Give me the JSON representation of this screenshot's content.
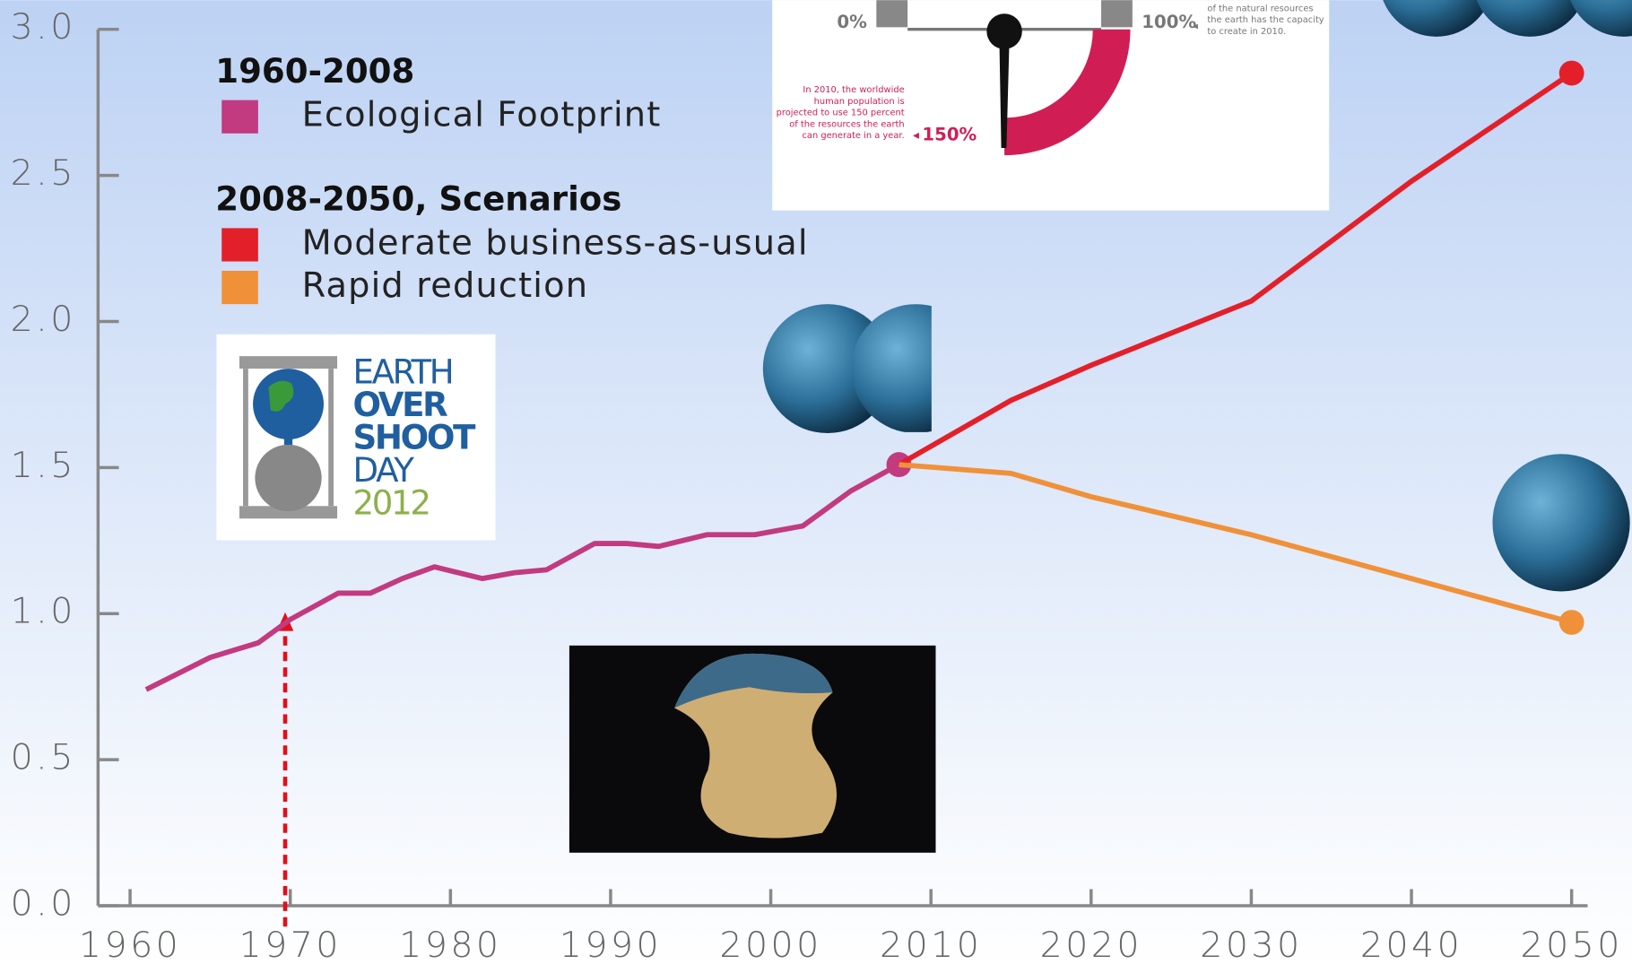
{
  "chart_data": {
    "type": "line",
    "legend_groups": [
      "1960-2008",
      "2008-2050, Scenarios"
    ],
    "series": [
      {
        "name": "Ecological Footprint",
        "color": "#c23a80",
        "group": 0,
        "x": [
          1961,
          1965,
          1968,
          1970,
          1973,
          1975,
          1977,
          1979,
          1982,
          1984,
          1986,
          1989,
          1991,
          1993,
          1996,
          1999,
          2002,
          2005,
          2008
        ],
        "values": [
          0.74,
          0.85,
          0.9,
          0.98,
          1.07,
          1.07,
          1.12,
          1.16,
          1.12,
          1.14,
          1.15,
          1.24,
          1.24,
          1.23,
          1.27,
          1.27,
          1.3,
          1.42,
          1.51
        ]
      },
      {
        "name": "Moderate business-as-usual",
        "color": "#e3202a",
        "group": 1,
        "x": [
          2008,
          2015,
          2020,
          2030,
          2040,
          2050
        ],
        "values": [
          1.51,
          1.73,
          1.85,
          2.07,
          2.48,
          2.85
        ]
      },
      {
        "name": "Rapid reduction",
        "color": "#f0913a",
        "group": 1,
        "x": [
          2008,
          2015,
          2020,
          2030,
          2040,
          2050
        ],
        "values": [
          1.51,
          1.48,
          1.4,
          1.27,
          1.12,
          0.97
        ]
      }
    ],
    "xlim": [
      1958,
      2051
    ],
    "ylim": [
      0,
      3
    ],
    "xticks": [
      1960,
      1970,
      1980,
      1990,
      2000,
      2010,
      2020,
      2030,
      2040,
      2050
    ],
    "yticks": [
      {
        "value": 0,
        "label": "0.0"
      },
      0.5,
      {
        "value": 1,
        "label": "1.0"
      },
      1.5,
      {
        "value": 2,
        "label": "2.0"
      },
      2.5,
      {
        "value": 3,
        "label": "3.0"
      }
    ],
    "gauge": {
      "low": "0%",
      "full": "100%",
      "over": "150%",
      "note": [
        "In 2010, the worldwide",
        "human population is",
        "projected to use 150 percent",
        "of the resources the earth",
        "can generate in a year."
      ],
      "side_note": [
        "of the natural resources",
        "the earth has the capacity",
        "to create in 2010."
      ]
    },
    "logo": [
      "EARTH",
      "OVER",
      "SHOOT",
      "DAY",
      "2012"
    ]
  }
}
